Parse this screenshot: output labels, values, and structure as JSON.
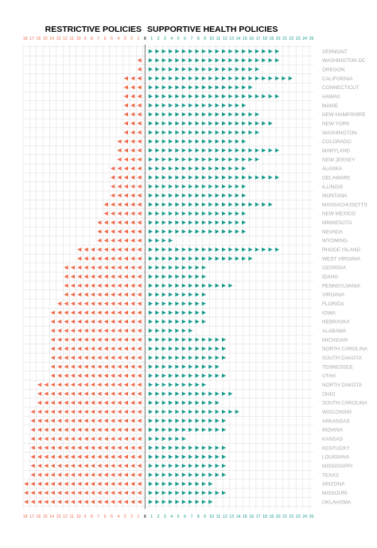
{
  "header": {
    "restrictive_label": "RESTRICTIVE POLICIES",
    "supportive_label": "SUPPORTIVE HEALTH POLICIES"
  },
  "colors": {
    "restrictive": "#ee6b4d",
    "supportive": "#169a8c",
    "grid": "#dcdcdc",
    "state_text": "#a9a9a9"
  },
  "chart_data": {
    "type": "bar",
    "orientation": "horizontal-diverging",
    "mark": "triangle",
    "left_axis": {
      "ticks": [
        18,
        17,
        16,
        15,
        14,
        13,
        12,
        11,
        10,
        9,
        8,
        7,
        6,
        5,
        4,
        3,
        2,
        1
      ]
    },
    "center_tick": 0,
    "right_axis": {
      "ticks": [
        1,
        2,
        3,
        4,
        5,
        6,
        7,
        8,
        9,
        10,
        11,
        12,
        13,
        14,
        15,
        16,
        17,
        18,
        19,
        20,
        21,
        22,
        23,
        24,
        25
      ]
    },
    "grid": true,
    "categories": [
      "VERMONT",
      "WASHINGTON DC",
      "OREGON",
      "CALIFORNIA",
      "CONNECTICUT",
      "HAWAII",
      "MAINE",
      "NEW HAMPSHIRE",
      "NEW YORK",
      "WASHINGTON",
      "COLORADO",
      "MARYLAND",
      "NEW JERSEY",
      "ALASKA",
      "DELAWARE",
      "ILLINOIS",
      "MONTANA",
      "MASSACHUSETTS",
      "NEW MEXICO",
      "MINNESOTA",
      "NEVADA",
      "WYOMING",
      "RHODE ISLAND",
      "WEST VIRGINIA",
      "GEORGIA",
      "IDAHO",
      "PENNSYLVANIA",
      "VIRGINIA",
      "FLORIDA",
      "IOWA",
      "NEBRASKA",
      "ALABAMA",
      "MICHIGAN",
      "NORTH CAROLINA",
      "SOUTH DAKOTA",
      "TENNESSEE",
      "UTAH",
      "NORTH DAKOTA",
      "OHIO",
      "SOUTH CAROLINA",
      "WISCONSIN",
      "ARKANSAS",
      "INDIANA",
      "KANSAS",
      "KENTUCKY",
      "LOUISIANA",
      "MISSISSIPPI",
      "TEXAS",
      "ARIZONA",
      "MISSOURI",
      "OKLAHOMA"
    ],
    "series": [
      {
        "values": [
          0,
          1,
          1,
          3,
          3,
          3,
          3,
          3,
          3,
          3,
          4,
          4,
          4,
          5,
          5,
          5,
          5,
          6,
          6,
          7,
          7,
          7,
          10,
          10,
          12,
          12,
          12,
          12,
          13,
          14,
          14,
          14,
          14,
          14,
          14,
          14,
          14,
          16,
          16,
          16,
          17,
          17,
          17,
          17,
          17,
          17,
          17,
          17,
          18,
          18,
          18
        ]
      },
      {
        "values": [
          20,
          20,
          17,
          22,
          16,
          20,
          15,
          17,
          19,
          17,
          15,
          20,
          17,
          15,
          20,
          15,
          15,
          19,
          15,
          15,
          15,
          4,
          20,
          16,
          9,
          9,
          13,
          9,
          9,
          9,
          9,
          7,
          12,
          12,
          12,
          11,
          12,
          9,
          13,
          11,
          14,
          12,
          12,
          6,
          12,
          12,
          12,
          12,
          10,
          12,
          10
        ]
      }
    ]
  }
}
